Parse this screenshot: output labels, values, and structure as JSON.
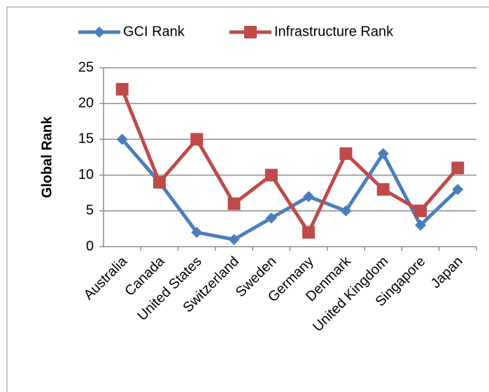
{
  "chart_data": {
    "type": "line",
    "categories": [
      "Australia",
      "Canada",
      "United States",
      "Switzerland",
      "Sweden",
      "Germany",
      "Denmark",
      "United Kingdom",
      "Singapore",
      "Japan"
    ],
    "series": [
      {
        "name": "GCI Rank",
        "color": "#4a7ebb",
        "marker": "diamond",
        "values": [
          15,
          9,
          2,
          1,
          4,
          7,
          5,
          13,
          3,
          8
        ]
      },
      {
        "name": "Infrastructure Rank",
        "color": "#be4b48",
        "marker": "square",
        "values": [
          22,
          9,
          15,
          6,
          10,
          2,
          13,
          8,
          5,
          11
        ]
      }
    ],
    "ylabel": "Global Rank",
    "ylim": [
      0,
      25
    ],
    "yticks": [
      0,
      5,
      10,
      15,
      20,
      25
    ],
    "grid": true,
    "legend": "top"
  }
}
